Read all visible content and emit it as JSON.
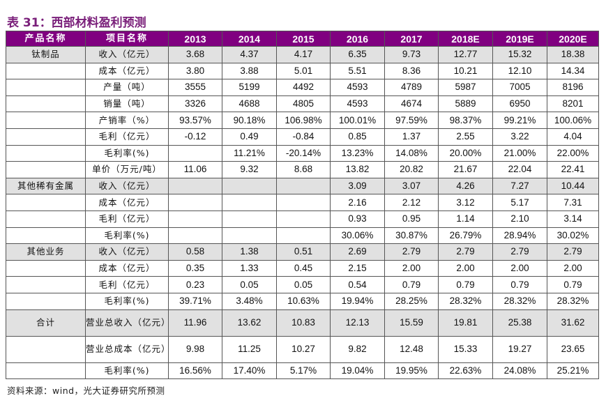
{
  "title": "表 31：西部材料盈利预测",
  "colors": {
    "header_bg": "#800080",
    "title": "#7a1f7a",
    "group_row_bg": "#e1e1e1"
  },
  "headers": [
    "产品名称",
    "项目名称",
    "2013",
    "2014",
    "2015",
    "2016",
    "2017",
    "2018E",
    "2019E",
    "2020E"
  ],
  "rows": [
    {
      "group": "钛制品",
      "item": "收入（亿元）",
      "values": [
        "3.68",
        "4.37",
        "4.17",
        "6.35",
        "9.73",
        "12.77",
        "15.32",
        "18.38"
      ]
    },
    {
      "group": "",
      "item": "成本（亿元）",
      "values": [
        "3.80",
        "3.88",
        "5.01",
        "5.51",
        "8.36",
        "10.21",
        "12.10",
        "14.34"
      ]
    },
    {
      "group": "",
      "item": "产量（吨）",
      "values": [
        "3555",
        "5199",
        "4492",
        "4593",
        "4789",
        "5987",
        "7005",
        "8196"
      ]
    },
    {
      "group": "",
      "item": "销量（吨）",
      "values": [
        "3326",
        "4688",
        "4805",
        "4593",
        "4674",
        "5889",
        "6950",
        "8201"
      ]
    },
    {
      "group": "",
      "item": "产销率（%）",
      "values": [
        "93.57%",
        "90.18%",
        "106.98%",
        "100.01%",
        "97.59%",
        "98.37%",
        "99.21%",
        "100.06%"
      ]
    },
    {
      "group": "",
      "item": "毛利（亿元）",
      "values": [
        "-0.12",
        "0.49",
        "-0.84",
        "0.85",
        "1.37",
        "2.55",
        "3.22",
        "4.04"
      ]
    },
    {
      "group": "",
      "item": "毛利率(%)",
      "values": [
        "",
        "11.21%",
        "-20.14%",
        "13.23%",
        "14.08%",
        "20.00%",
        "21.00%",
        "22.00%"
      ]
    },
    {
      "group": "",
      "item": "单价（万元/吨）",
      "values": [
        "11.06",
        "9.32",
        "8.68",
        "13.82",
        "20.82",
        "21.67",
        "22.04",
        "22.41"
      ]
    },
    {
      "group": "其他稀有金属",
      "item": "收入（亿元）",
      "values": [
        "",
        "",
        "",
        "3.09",
        "3.07",
        "4.26",
        "7.27",
        "10.44"
      ]
    },
    {
      "group": "",
      "item": "成本（亿元）",
      "values": [
        "",
        "",
        "",
        "2.16",
        "2.12",
        "3.12",
        "5.17",
        "7.31"
      ]
    },
    {
      "group": "",
      "item": "毛利（亿元）",
      "values": [
        "",
        "",
        "",
        "0.93",
        "0.95",
        "1.14",
        "2.10",
        "3.14"
      ]
    },
    {
      "group": "",
      "item": "毛利率(%)",
      "values": [
        "",
        "",
        "",
        "30.06%",
        "30.87%",
        "26.79%",
        "28.94%",
        "30.02%"
      ]
    },
    {
      "group": "其他业务",
      "item": "收入（亿元）",
      "values": [
        "0.58",
        "1.38",
        "0.51",
        "2.69",
        "2.79",
        "2.79",
        "2.79",
        "2.79"
      ]
    },
    {
      "group": "",
      "item": "成本（亿元）",
      "values": [
        "0.35",
        "1.33",
        "0.45",
        "2.15",
        "2.00",
        "2.00",
        "2.00",
        "2.00"
      ]
    },
    {
      "group": "",
      "item": "毛利（亿元）",
      "values": [
        "0.23",
        "0.05",
        "0.05",
        "0.54",
        "0.79",
        "0.79",
        "0.79",
        "0.79"
      ]
    },
    {
      "group": "",
      "item": "毛利率(%)",
      "values": [
        "39.71%",
        "3.48%",
        "10.63%",
        "19.94%",
        "28.25%",
        "28.32%",
        "28.32%",
        "28.32%"
      ]
    },
    {
      "group": "合计",
      "item": "营业总收入（亿元）",
      "values": [
        "11.96",
        "13.62",
        "10.83",
        "12.13",
        "15.59",
        "19.81",
        "25.38",
        "31.62"
      ]
    },
    {
      "group": "",
      "item": "营业总成本（亿元）",
      "values": [
        "9.98",
        "11.25",
        "10.27",
        "9.82",
        "12.48",
        "15.33",
        "19.27",
        "23.65"
      ]
    },
    {
      "group": "",
      "item": "毛利率(%)",
      "values": [
        "16.56%",
        "17.40%",
        "5.17%",
        "19.04%",
        "19.95%",
        "22.63%",
        "24.08%",
        "25.21%"
      ]
    }
  ],
  "source": "资料来源：wind，光大证券研究所预测"
}
